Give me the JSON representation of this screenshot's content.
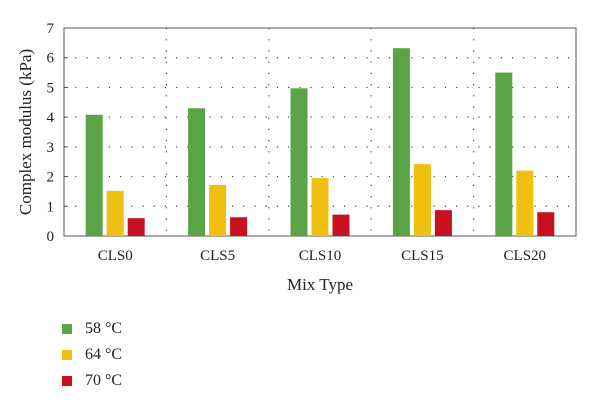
{
  "chart_data": {
    "type": "bar",
    "categories": [
      "CLS0",
      "CLS5",
      "CLS10",
      "CLS15",
      "CLS20"
    ],
    "series": [
      {
        "name": "58 °C",
        "color": "#5aa347",
        "values": [
          4.08,
          4.3,
          4.97,
          6.32,
          5.5
        ]
      },
      {
        "name": "64 °C",
        "color": "#f0c010",
        "values": [
          1.52,
          1.72,
          1.95,
          2.42,
          2.2
        ]
      },
      {
        "name": "70 °C",
        "color": "#c8101e",
        "values": [
          0.6,
          0.63,
          0.72,
          0.87,
          0.8
        ]
      }
    ],
    "xlabel": "Mix Type",
    "ylabel": "Complex modulus (kPa)",
    "ylim": [
      0,
      7
    ],
    "yticks": [
      0,
      1,
      2,
      3,
      4,
      5,
      6,
      7
    ],
    "grid": "dotted",
    "legend_position": "bottom-left"
  }
}
